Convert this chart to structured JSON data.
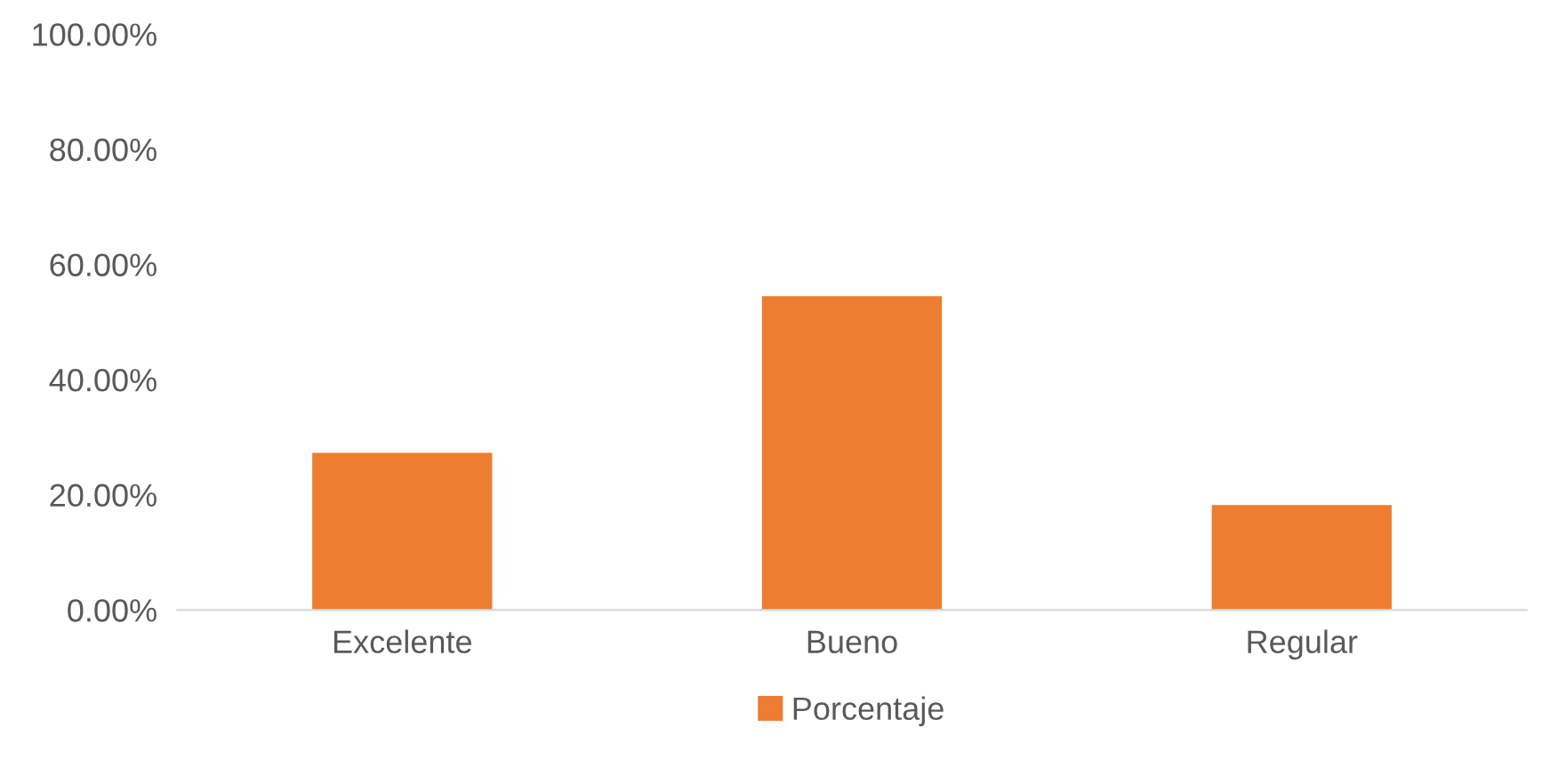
{
  "chart_data": {
    "type": "bar",
    "categories": [
      "Excelente",
      "Bueno",
      "Regular"
    ],
    "series": [
      {
        "name": "Porcentaje",
        "color": "#ed7d31",
        "values": [
          27.3,
          54.5,
          18.2
        ]
      }
    ],
    "ylim": [
      0,
      100
    ],
    "yticks": [
      {
        "value": 0,
        "label": "0.00%"
      },
      {
        "value": 20,
        "label": "20.00%"
      },
      {
        "value": 40,
        "label": "40.00%"
      },
      {
        "value": 60,
        "label": "60.00%"
      },
      {
        "value": 80,
        "label": "80.00%"
      },
      {
        "value": 100,
        "label": "100.00%"
      }
    ],
    "grid": false,
    "legend": "bottom"
  }
}
